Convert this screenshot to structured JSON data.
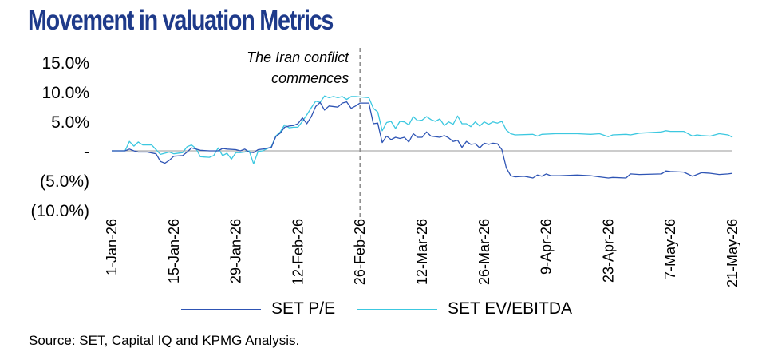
{
  "title": "Movement in valuation Metrics",
  "source": "Source: SET, Capital IQ and KPMG Analysis.",
  "chart_data": {
    "type": "line",
    "title": "Movement in valuation Metrics",
    "annotation": {
      "line1": "The Iran conflict",
      "line2": "commences",
      "date": "26-Feb-26"
    },
    "yticks": [
      {
        "v": 15,
        "label": "15.0%"
      },
      {
        "v": 10,
        "label": "10.0%"
      },
      {
        "v": 5,
        "label": "5.0%"
      },
      {
        "v": 0,
        "label": "-"
      },
      {
        "v": -5,
        "label": "(5.0%)"
      },
      {
        "v": -10,
        "label": "(10.0%)"
      }
    ],
    "ylim": [
      -10,
      15
    ],
    "xlim_days": [
      0,
      140
    ],
    "xticks": [
      {
        "d": 0,
        "label": "1-Jan-26"
      },
      {
        "d": 14,
        "label": "15-Jan-26"
      },
      {
        "d": 28,
        "label": "29-Jan-26"
      },
      {
        "d": 42,
        "label": "12-Feb-26"
      },
      {
        "d": 56,
        "label": "26-Feb-26"
      },
      {
        "d": 70,
        "label": "12-Mar-26"
      },
      {
        "d": 84,
        "label": "26-Mar-26"
      },
      {
        "d": 98,
        "label": "9-Apr-26"
      },
      {
        "d": 112,
        "label": "23-Apr-26"
      },
      {
        "d": 126,
        "label": "7-May-26"
      },
      {
        "d": 140,
        "label": "21-May-26"
      }
    ],
    "series": [
      {
        "name": "SET P/E",
        "color": "#2e54b4",
        "points": [
          [
            0,
            0
          ],
          [
            3,
            0
          ],
          [
            4,
            0.3
          ],
          [
            5,
            0
          ],
          [
            6,
            -0.2
          ],
          [
            8,
            -0.2
          ],
          [
            10,
            -0.5
          ],
          [
            11,
            -1.8
          ],
          [
            12,
            -2.1
          ],
          [
            13,
            -1.6
          ],
          [
            14,
            -0.9
          ],
          [
            16,
            -0.8
          ],
          [
            17,
            -0.2
          ],
          [
            18,
            0.5
          ],
          [
            19,
            0.3
          ],
          [
            20,
            0.1
          ],
          [
            22,
            0
          ],
          [
            24,
            0
          ],
          [
            25,
            0.4
          ],
          [
            26,
            0.3
          ],
          [
            28,
            0.2
          ],
          [
            29,
            0
          ],
          [
            30,
            0.3
          ],
          [
            31,
            -0.2
          ],
          [
            32,
            -0.3
          ],
          [
            33,
            0.2
          ],
          [
            34,
            0.3
          ],
          [
            36,
            0.6
          ],
          [
            37,
            2.4
          ],
          [
            38,
            3
          ],
          [
            39,
            4
          ],
          [
            40,
            4.2
          ],
          [
            41,
            4.3
          ],
          [
            42,
            4.6
          ],
          [
            43,
            5.6
          ],
          [
            44,
            4.6
          ],
          [
            45,
            5.8
          ],
          [
            46,
            7.5
          ],
          [
            47,
            8.2
          ],
          [
            48,
            6.9
          ],
          [
            49,
            7.6
          ],
          [
            51,
            7.4
          ],
          [
            52,
            8.1
          ],
          [
            53,
            8.3
          ],
          [
            54,
            7.2
          ],
          [
            55,
            7.6
          ],
          [
            56,
            8.1
          ],
          [
            57,
            8.1
          ],
          [
            58,
            8.1
          ],
          [
            59,
            4.6
          ],
          [
            60,
            4.7
          ],
          [
            61,
            1.4
          ],
          [
            62,
            2.5
          ],
          [
            63,
            1.9
          ],
          [
            64,
            2.3
          ],
          [
            65,
            2.1
          ],
          [
            66,
            2.3
          ],
          [
            67,
            1.5
          ],
          [
            68,
            2.9
          ],
          [
            69,
            2.3
          ],
          [
            70,
            2.3
          ],
          [
            71,
            3.2
          ],
          [
            72,
            2.5
          ],
          [
            74,
            2.3
          ],
          [
            75,
            2.6
          ],
          [
            76,
            2.2
          ],
          [
            77,
            1.6
          ],
          [
            78,
            1.8
          ],
          [
            79,
            0.6
          ],
          [
            80,
            1.6
          ],
          [
            81,
            1.1
          ],
          [
            82,
            1.2
          ],
          [
            83,
            0.5
          ],
          [
            84,
            1.3
          ],
          [
            85,
            1.1
          ],
          [
            86,
            1.3
          ],
          [
            87,
            1.2
          ],
          [
            88,
            0.2
          ],
          [
            89,
            -2.9
          ],
          [
            90,
            -4.2
          ],
          [
            91,
            -4.4
          ],
          [
            93,
            -4.3
          ],
          [
            95,
            -4.6
          ],
          [
            96,
            -4.1
          ],
          [
            97,
            -4.3
          ],
          [
            98,
            -3.9
          ],
          [
            99,
            -4.2
          ],
          [
            101,
            -4.2
          ],
          [
            105,
            -4.1
          ],
          [
            108,
            -4.2
          ],
          [
            110,
            -4.4
          ],
          [
            112,
            -4.6
          ],
          [
            113,
            -4.5
          ],
          [
            116,
            -4.6
          ],
          [
            117,
            -3.9
          ],
          [
            119,
            -4
          ],
          [
            124,
            -3.9
          ],
          [
            125,
            -3.4
          ],
          [
            126,
            -3.5
          ],
          [
            129,
            -3.6
          ],
          [
            131,
            -4.3
          ],
          [
            132,
            -4
          ],
          [
            133,
            -3.7
          ],
          [
            135,
            -3.8
          ],
          [
            137,
            -4
          ],
          [
            139,
            -3.9
          ],
          [
            140,
            -3.8
          ]
        ]
      },
      {
        "name": "SET EV/EBITDA",
        "color": "#3cc8e0",
        "points": [
          [
            0,
            0
          ],
          [
            3,
            0
          ],
          [
            4,
            1.6
          ],
          [
            5,
            0.8
          ],
          [
            6,
            1.5
          ],
          [
            7,
            1
          ],
          [
            9,
            1
          ],
          [
            10,
            0.2
          ],
          [
            11,
            -0.6
          ],
          [
            13,
            -0.2
          ],
          [
            14,
            -0.5
          ],
          [
            16,
            -0.3
          ],
          [
            17,
            0.7
          ],
          [
            18,
            1
          ],
          [
            19,
            0.4
          ],
          [
            20,
            -1
          ],
          [
            22,
            -1.1
          ],
          [
            23,
            -0.8
          ],
          [
            24,
            0.5
          ],
          [
            25,
            -0.8
          ],
          [
            26,
            -0.4
          ],
          [
            27,
            -1.4
          ],
          [
            28,
            -0.3
          ],
          [
            29,
            -0.3
          ],
          [
            30,
            -0.2
          ],
          [
            31,
            0
          ],
          [
            32,
            -2.2
          ],
          [
            33,
            -0.1
          ],
          [
            34,
            0
          ],
          [
            36,
            0.7
          ],
          [
            37,
            2.5
          ],
          [
            38,
            3.2
          ],
          [
            39,
            4.4
          ],
          [
            40,
            3.9
          ],
          [
            41,
            4
          ],
          [
            42,
            4
          ],
          [
            43,
            5
          ],
          [
            44,
            6.1
          ],
          [
            45,
            7.3
          ],
          [
            46,
            8.4
          ],
          [
            47,
            8.2
          ],
          [
            48,
            9.3
          ],
          [
            49,
            9
          ],
          [
            50,
            9.2
          ],
          [
            51,
            9
          ],
          [
            52,
            9.2
          ],
          [
            53,
            8.7
          ],
          [
            54,
            9.2
          ],
          [
            55,
            9.2
          ],
          [
            58,
            9
          ],
          [
            59,
            7.2
          ],
          [
            60,
            6.6
          ],
          [
            61,
            3.4
          ],
          [
            62,
            4.8
          ],
          [
            63,
            5
          ],
          [
            64,
            3.8
          ],
          [
            65,
            5
          ],
          [
            66,
            4.9
          ],
          [
            67,
            4.4
          ],
          [
            68,
            5.8
          ],
          [
            69,
            5.1
          ],
          [
            70,
            5.2
          ],
          [
            71,
            5.8
          ],
          [
            72,
            5.3
          ],
          [
            73,
            5
          ],
          [
            74,
            5.4
          ],
          [
            75,
            4.3
          ],
          [
            76,
            4.9
          ],
          [
            77,
            4.5
          ],
          [
            78,
            5.9
          ],
          [
            79,
            4.6
          ],
          [
            80,
            4.6
          ],
          [
            81,
            4.1
          ],
          [
            82,
            4.9
          ],
          [
            83,
            4.2
          ],
          [
            84,
            4.9
          ],
          [
            85,
            4.5
          ],
          [
            86,
            4.9
          ],
          [
            87,
            4.7
          ],
          [
            88,
            5
          ],
          [
            89,
            3.5
          ],
          [
            90,
            2.9
          ],
          [
            91,
            2.7
          ],
          [
            95,
            2.8
          ],
          [
            96,
            2.5
          ],
          [
            97,
            2.8
          ],
          [
            100,
            2.9
          ],
          [
            105,
            2.9
          ],
          [
            108,
            2.8
          ],
          [
            110,
            2.9
          ],
          [
            112,
            2.4
          ],
          [
            113,
            2.7
          ],
          [
            116,
            2.8
          ],
          [
            117,
            2.7
          ],
          [
            119,
            3
          ],
          [
            124,
            3.2
          ],
          [
            125,
            3.4
          ],
          [
            126,
            3.3
          ],
          [
            129,
            3.3
          ],
          [
            131,
            2.5
          ],
          [
            132,
            2.7
          ],
          [
            133,
            2.6
          ],
          [
            135,
            2.5
          ],
          [
            137,
            2.9
          ],
          [
            139,
            2.7
          ],
          [
            140,
            2.3
          ]
        ]
      }
    ]
  },
  "legend": [
    {
      "label": "SET P/E",
      "color": "#2e54b4"
    },
    {
      "label": "SET EV/EBITDA",
      "color": "#3cc8e0"
    }
  ]
}
